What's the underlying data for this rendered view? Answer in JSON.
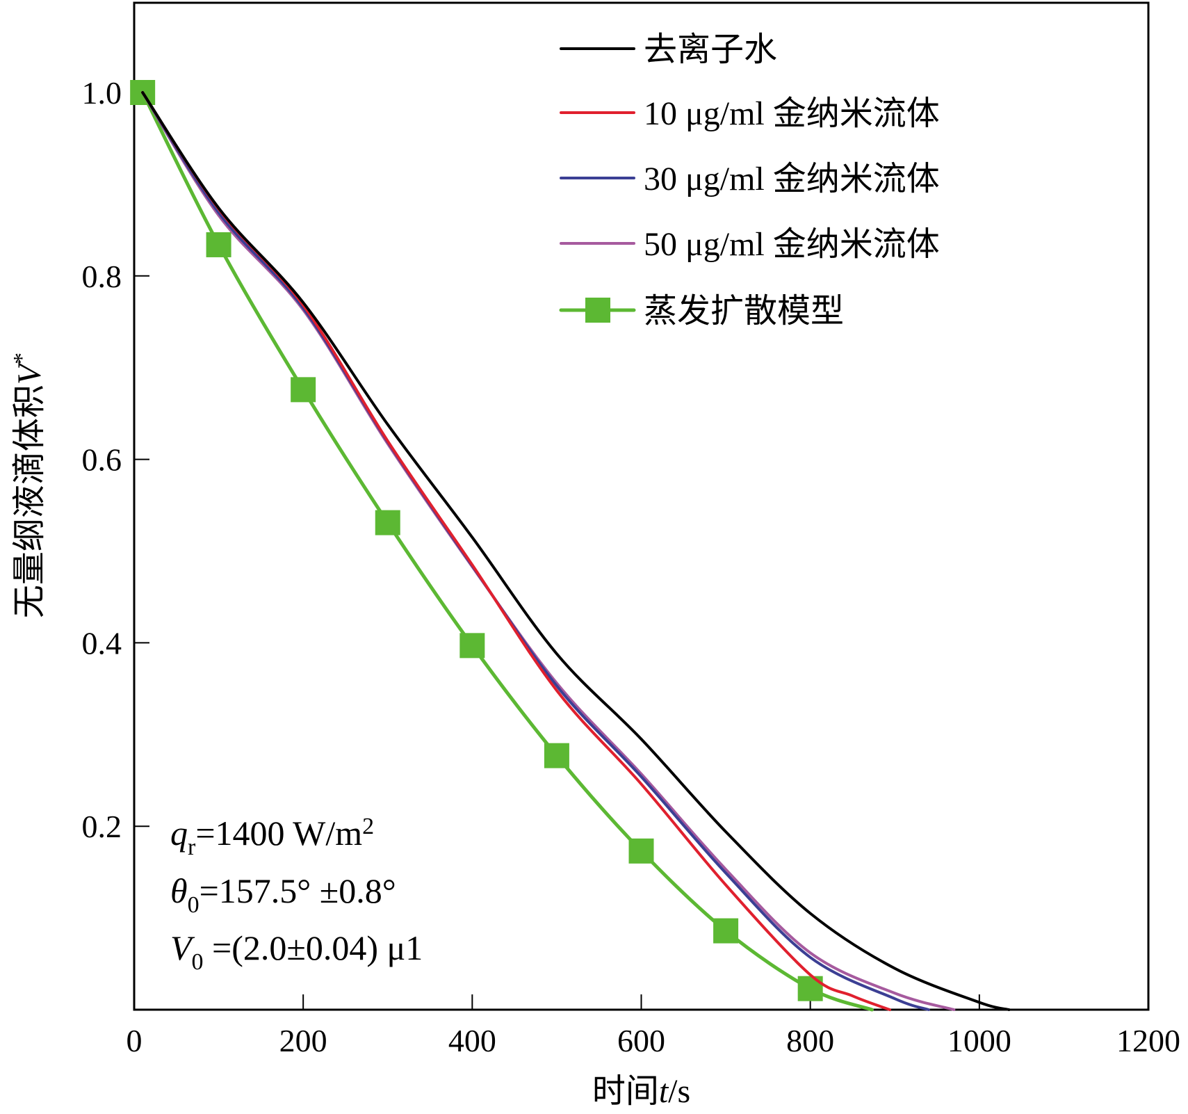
{
  "chart_data": {
    "type": "line",
    "title": "",
    "xlabel": "时间t/s",
    "xlabel_parts": {
      "prefix": "时间",
      "var": "t",
      "suffix": "/s"
    },
    "ylabel": "无量纲液滴体积V*",
    "ylabel_parts": {
      "prefix": "无量纲液滴体积",
      "var": "V",
      "sup": "*"
    },
    "xlim": [
      0,
      1200
    ],
    "ylim": [
      0,
      1.08
    ],
    "x_ticks": [
      0,
      200,
      400,
      600,
      800,
      1000,
      1200
    ],
    "x_tick_labels": [
      "0",
      "200",
      "400",
      "600",
      "800",
      "1000",
      "1200"
    ],
    "y_ticks": [
      0.2,
      0.4,
      0.6,
      0.8,
      1.0
    ],
    "y_tick_labels": [
      "0.2",
      "0.4",
      "0.6",
      "0.8",
      "1.0"
    ],
    "grid": false,
    "legend_position": "top-right",
    "series": [
      {
        "name": "去离子水",
        "color": "#000000",
        "marker": "none",
        "x": [
          10,
          100,
          200,
          300,
          400,
          500,
          600,
          700,
          800,
          900,
          1000,
          1035
        ],
        "y": [
          1.0,
          0.874,
          0.771,
          0.638,
          0.515,
          0.388,
          0.295,
          0.194,
          0.105,
          0.045,
          0.008,
          0.0
        ]
      },
      {
        "name": "10 μg/ml 金纳米流体",
        "color": "#e0202e",
        "marker": "none",
        "x": [
          10,
          100,
          200,
          300,
          400,
          500,
          600,
          700,
          800,
          850,
          894
        ],
        "y": [
          1.0,
          0.873,
          0.768,
          0.62,
          0.485,
          0.348,
          0.246,
          0.136,
          0.038,
          0.015,
          0.0
        ]
      },
      {
        "name": "30 μg/ml 金纳米流体",
        "color": "#3b3f94",
        "marker": "none",
        "x": [
          10,
          100,
          200,
          300,
          400,
          500,
          600,
          700,
          800,
          900,
          940
        ],
        "y": [
          1.0,
          0.869,
          0.765,
          0.619,
          0.484,
          0.353,
          0.254,
          0.149,
          0.057,
          0.012,
          0.0
        ]
      },
      {
        "name": "50 μg/ml 金纳米流体",
        "color": "#a65a9e",
        "marker": "none",
        "x": [
          10,
          100,
          200,
          300,
          400,
          500,
          600,
          700,
          800,
          900,
          970
        ],
        "y": [
          1.0,
          0.866,
          0.763,
          0.617,
          0.483,
          0.356,
          0.257,
          0.153,
          0.062,
          0.018,
          0.0
        ]
      },
      {
        "name": "蒸发扩散模型",
        "color": "#5cb833",
        "marker": "square",
        "marker_x": [
          10,
          100,
          200,
          300,
          400,
          500,
          600,
          700,
          800
        ],
        "marker_y": [
          1.0,
          0.834,
          0.676,
          0.531,
          0.397,
          0.277,
          0.173,
          0.086,
          0.023
        ],
        "x": [
          10,
          100,
          200,
          300,
          400,
          500,
          600,
          700,
          800,
          873
        ],
        "y": [
          1.0,
          0.834,
          0.676,
          0.531,
          0.397,
          0.277,
          0.173,
          0.086,
          0.023,
          0.0
        ]
      }
    ],
    "annotations": [
      {
        "var": "q",
        "sub": "r",
        "text": "=1400 W/m",
        "sup": "2"
      },
      {
        "var": "θ",
        "sub": "0",
        "text": "=157.5° ±0.8°",
        "sup": ""
      },
      {
        "var": "V",
        "sub": "0",
        "text": " =(2.0±0.04) μ1",
        "sup": ""
      }
    ]
  }
}
